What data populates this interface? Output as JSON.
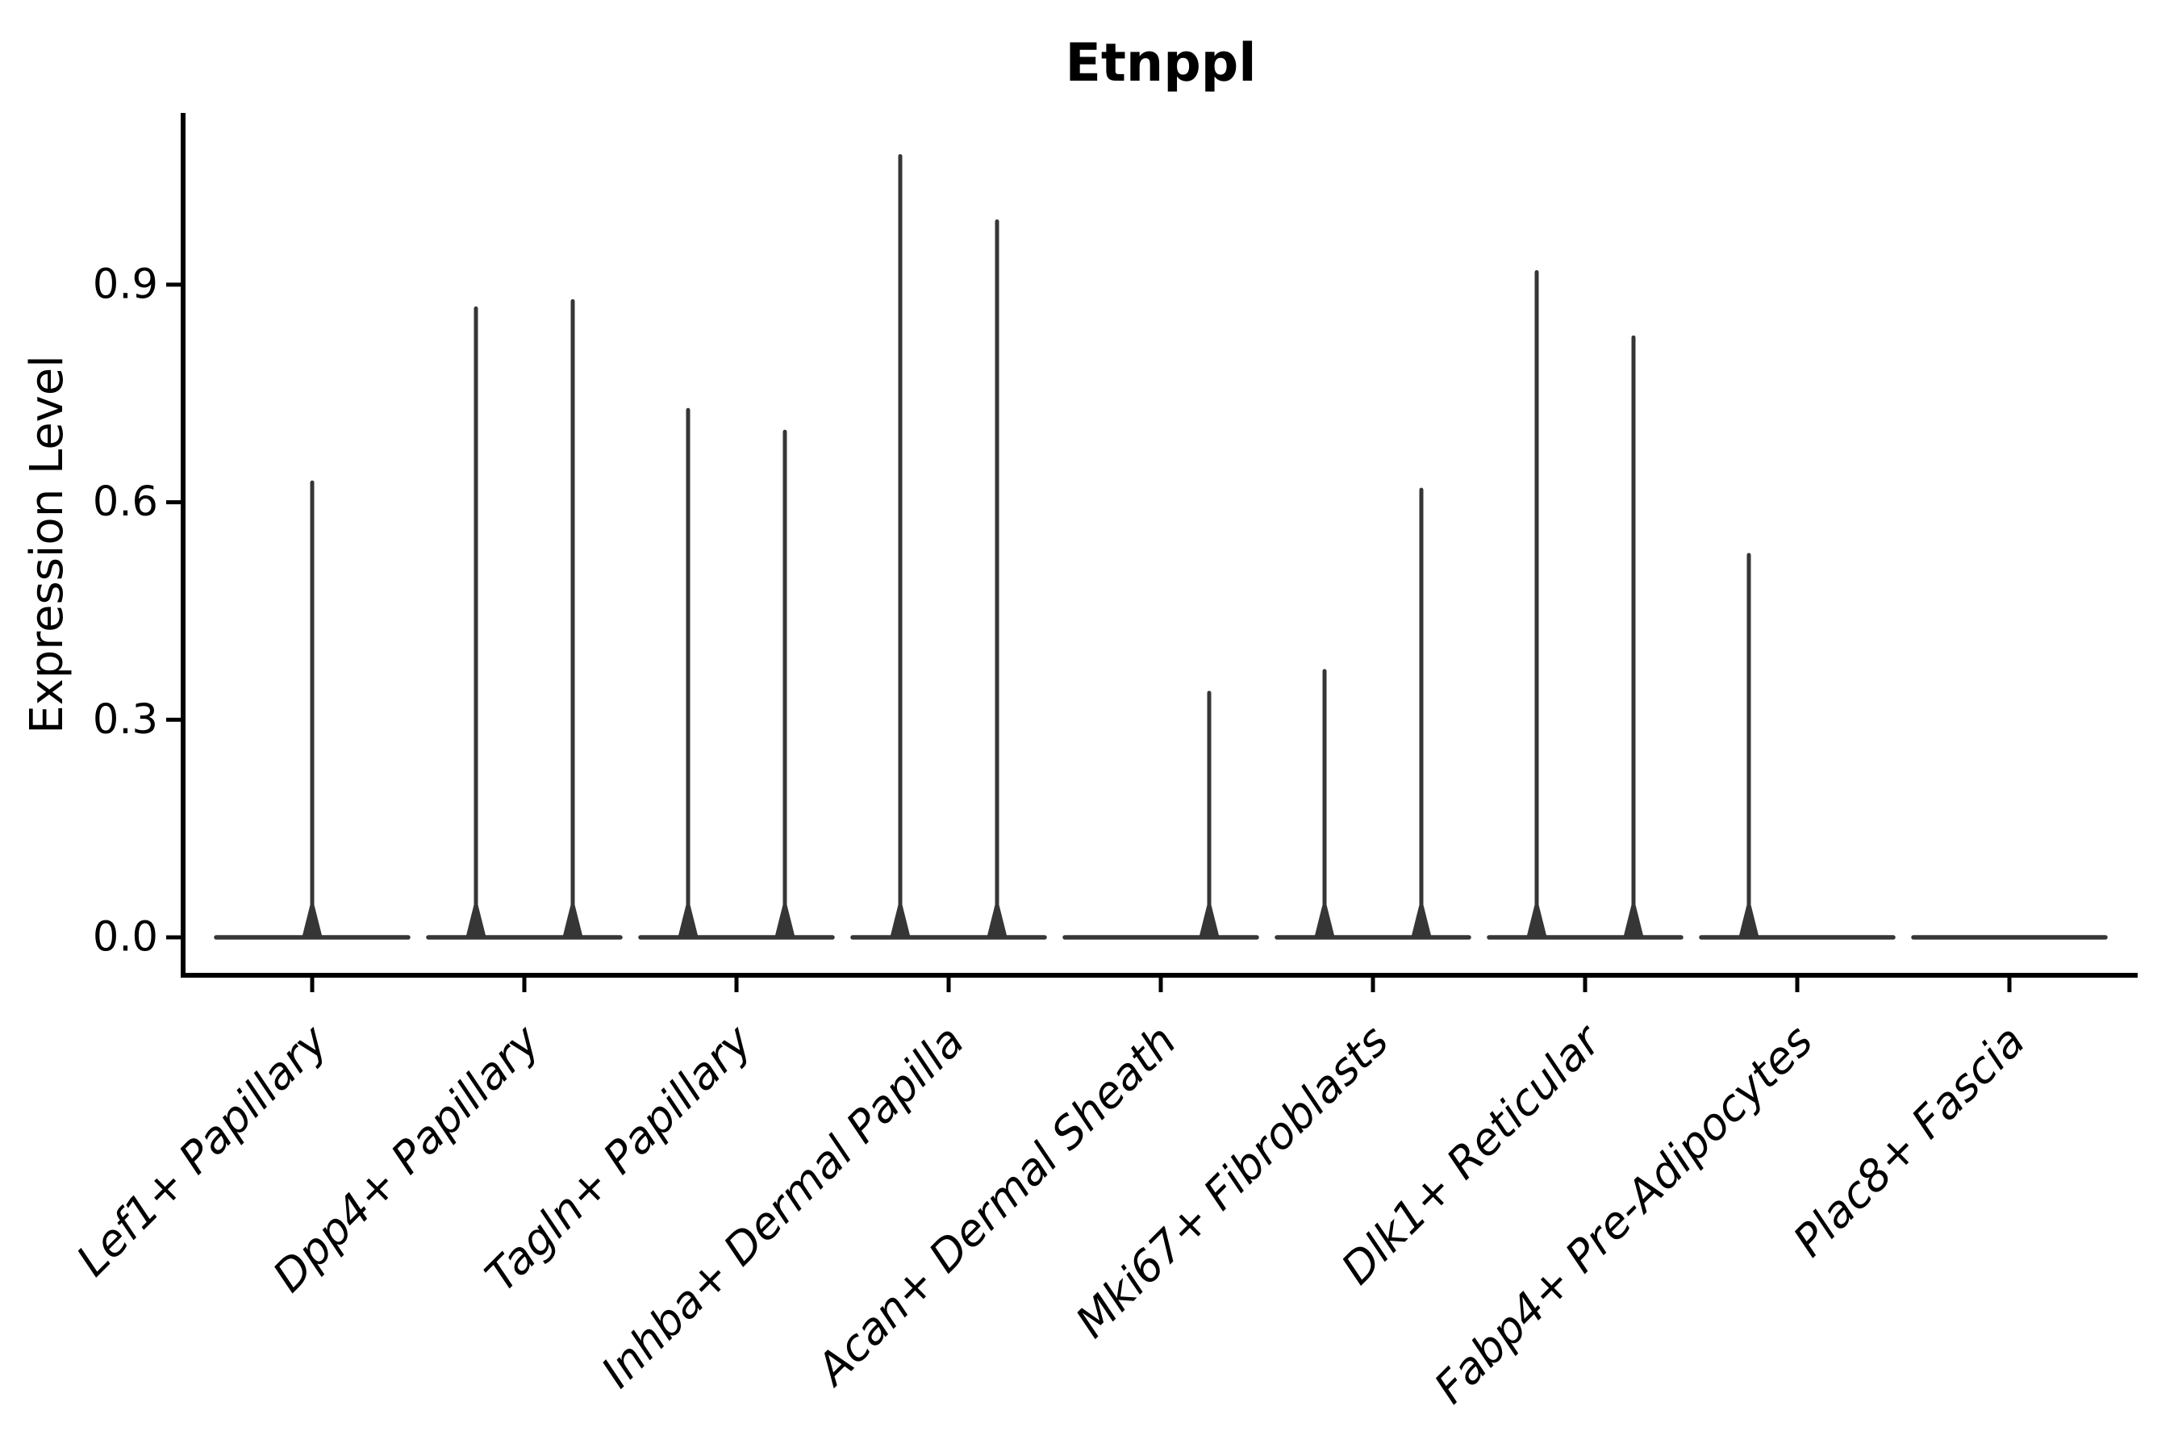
{
  "figure": {
    "title": "Etnppl",
    "background": "#ffffff"
  },
  "colors": {
    "spine": "#000000",
    "tick": "#000000",
    "text": "#000000",
    "violin_line": "#363636"
  },
  "chart_data": {
    "type": "violin",
    "title": "Etnppl",
    "xlabel": "",
    "ylabel": "Expression Level",
    "yticks": [
      0,
      0.3,
      0.6,
      0.9
    ],
    "ytick_labels": [
      "0.0",
      "0.3",
      "0.6",
      "0.9"
    ],
    "ylim": [
      -0.05,
      1.14
    ],
    "grid": false,
    "x_label_rotation_degrees": 45,
    "x_label_style": "italic",
    "categories": [
      "Lef1+ Papillary",
      "Dpp4+ Papillary",
      "Tagln+ Papillary",
      "Inhba+ Dermal Papilla",
      "Acan+ Dermal Sheath",
      "Mki67+ Fibroblasts",
      "Dlk1+ Reticular",
      "Fabp4+ Pre-Adipocytes",
      "Plac8+ Fascia"
    ],
    "baseline_value": 0,
    "violins": [
      {
        "category": "Lef1+ Papillary",
        "position": "center",
        "peak": 0.63
      },
      {
        "category": "Dpp4+ Papillary",
        "position": "left",
        "peak": 0.87
      },
      {
        "category": "Dpp4+ Papillary",
        "position": "right",
        "peak": 0.88
      },
      {
        "category": "Tagln+ Papillary",
        "position": "left",
        "peak": 0.73
      },
      {
        "category": "Tagln+ Papillary",
        "position": "right",
        "peak": 0.7
      },
      {
        "category": "Inhba+ Dermal Papilla",
        "position": "left",
        "peak": 1.08
      },
      {
        "category": "Inhba+ Dermal Papilla",
        "position": "right",
        "peak": 0.99
      },
      {
        "category": "Acan+ Dermal Sheath",
        "position": "right",
        "peak": 0.34
      },
      {
        "category": "Mki67+ Fibroblasts",
        "position": "left",
        "peak": 0.37
      },
      {
        "category": "Mki67+ Fibroblasts",
        "position": "right",
        "peak": 0.62
      },
      {
        "category": "Dlk1+ Reticular",
        "position": "left",
        "peak": 0.92
      },
      {
        "category": "Dlk1+ Reticular",
        "position": "right",
        "peak": 0.83
      },
      {
        "category": "Fabp4+ Pre-Adipocytes",
        "position": "left",
        "peak": 0.53
      }
    ]
  }
}
